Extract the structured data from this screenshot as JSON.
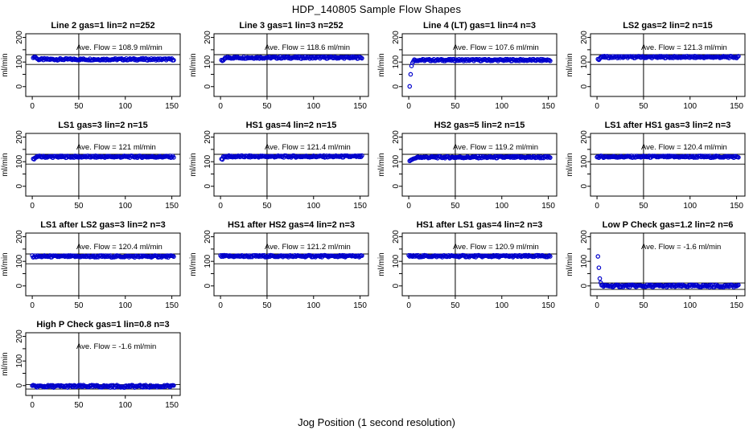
{
  "page": {
    "title": "HDP_140805  Sample Flow Shapes",
    "xlabel": "Jog Position (1 second resolution)"
  },
  "chart_data": {
    "type": "scatter",
    "layout": {
      "rows": 4,
      "cols": 4,
      "n_panels": 13
    },
    "point_color": "#0000CC",
    "axis_color": "#000000",
    "ylabel": "ml/min",
    "x_ticks": [
      0,
      50,
      100,
      150
    ],
    "y_ticks_labeled": [
      0,
      100,
      200
    ],
    "y_ticks_minor": [
      50,
      150
    ],
    "xlim": [
      -7,
      159
    ],
    "ylim": [
      -40,
      215
    ],
    "vline_x": 50,
    "panels": [
      {
        "title": "Line 2 gas=1 lin=2 n=252",
        "gas": "1",
        "lin": "2",
        "n": 252,
        "ave_flow": 108.9,
        "annotation": "Ave. Flow =  108.9  ml/min",
        "flat_level": 111,
        "jitter": 4,
        "x_end": 152,
        "lead_points": [
          [
            1,
            117
          ],
          [
            2,
            120
          ],
          [
            3,
            121
          ],
          [
            4,
            118
          ],
          [
            5,
            114
          ]
        ],
        "ref_hi": 130,
        "ref_lo": 90
      },
      {
        "title": "Line 3 gas=1 lin=3 n=252",
        "gas": "1",
        "lin": "3",
        "n": 252,
        "ave_flow": 118.6,
        "annotation": "Ave. Flow =  118.6  ml/min",
        "flat_level": 118,
        "jitter": 4,
        "x_end": 152,
        "lead_points": [
          [
            1,
            108
          ],
          [
            2,
            105
          ],
          [
            3,
            107
          ],
          [
            4,
            112
          ]
        ],
        "ref_hi": 130,
        "ref_lo": 90
      },
      {
        "title": "Line 4 (LT) gas=1 lin=4 n=3",
        "gas": "1",
        "lin": "4",
        "n": 3,
        "ave_flow": 107.6,
        "annotation": "Ave. Flow =  107.6  ml/min",
        "flat_level": 108,
        "jitter": 4,
        "x_end": 152,
        "lead_points": [
          [
            1,
            1
          ],
          [
            2,
            50
          ],
          [
            3,
            84
          ],
          [
            4,
            96
          ],
          [
            5,
            103
          ]
        ],
        "ref_hi": 128,
        "ref_lo": 90
      },
      {
        "title": "LS2 gas=2 lin=2 n=15",
        "gas": "2",
        "lin": "2",
        "n": 15,
        "ave_flow": 121.3,
        "annotation": "Ave. Flow =  121.3  ml/min",
        "flat_level": 120,
        "jitter": 4,
        "x_end": 152,
        "lead_points": [
          [
            1,
            112
          ],
          [
            2,
            109
          ],
          [
            3,
            114
          ]
        ],
        "ref_hi": 130,
        "ref_lo": 90
      },
      {
        "title": "LS1 gas=3 lin=2 n=15",
        "gas": "3",
        "lin": "2",
        "n": 15,
        "ave_flow": 121,
        "annotation": "Ave. Flow =  121   ml/min",
        "flat_level": 120,
        "jitter": 4,
        "x_end": 152,
        "lead_points": [
          [
            1,
            112
          ],
          [
            2,
            110
          ]
        ],
        "ref_hi": 130,
        "ref_lo": 90
      },
      {
        "title": "HS1 gas=4 lin=2 n=15",
        "gas": "4",
        "lin": "2",
        "n": 15,
        "ave_flow": 121.4,
        "annotation": "Ave. Flow =  121.4  ml/min",
        "flat_level": 121,
        "jitter": 4,
        "x_end": 152,
        "lead_points": [
          [
            1,
            111
          ],
          [
            2,
            109
          ]
        ],
        "ref_hi": 130,
        "ref_lo": 90
      },
      {
        "title": "HS2 gas=5 lin=2 n=15",
        "gas": "5",
        "lin": "2",
        "n": 15,
        "ave_flow": 119.2,
        "annotation": "Ave. Flow =  119.2  ml/min",
        "flat_level": 118,
        "jitter": 4,
        "x_end": 152,
        "lead_points": [
          [
            1,
            103
          ],
          [
            2,
            106
          ],
          [
            3,
            108
          ],
          [
            4,
            110
          ],
          [
            5,
            112
          ],
          [
            6,
            113
          ],
          [
            7,
            114
          ],
          [
            8,
            115
          ]
        ],
        "ref_hi": 130,
        "ref_lo": 90
      },
      {
        "title": "LS1 after HS1 gas=3 lin=2 n=3",
        "gas": "3",
        "lin": "2",
        "n": 3,
        "ave_flow": 120.4,
        "annotation": "Ave. Flow =  120.4  ml/min",
        "flat_level": 120,
        "jitter": 4,
        "x_end": 152,
        "lead_points": [],
        "ref_hi": 130,
        "ref_lo": 90
      },
      {
        "title": "LS1 after LS2 gas=3 lin=2 n=3",
        "gas": "3",
        "lin": "2",
        "n": 3,
        "ave_flow": 120.4,
        "annotation": "Ave. Flow =  120.4  ml/min",
        "flat_level": 120,
        "jitter": 4,
        "x_end": 152,
        "lead_points": [],
        "ref_hi": 130,
        "ref_lo": 90
      },
      {
        "title": "HS1 after HS2 gas=4 lin=2 n=3",
        "gas": "4",
        "lin": "2",
        "n": 3,
        "ave_flow": 121.2,
        "annotation": "Ave. Flow =  121.2  ml/min",
        "flat_level": 121,
        "jitter": 4,
        "x_end": 152,
        "lead_points": [],
        "ref_hi": 130,
        "ref_lo": 90
      },
      {
        "title": "HS1 after LS1 gas=4 lin=2 n=3",
        "gas": "4",
        "lin": "2",
        "n": 3,
        "ave_flow": 120.9,
        "annotation": "Ave. Flow =  120.9  ml/min",
        "flat_level": 121,
        "jitter": 4,
        "x_end": 152,
        "lead_points": [],
        "ref_hi": 130,
        "ref_lo": 90
      },
      {
        "title": "Low P Check gas=1.2 lin=2 n=6",
        "gas": "1.2",
        "lin": "2",
        "n": 6,
        "ave_flow": -1.6,
        "annotation": "Ave. Flow =  -1.6  ml/min",
        "flat_level": 0,
        "jitter": 5,
        "x_end": 152,
        "lead_points": [
          [
            1,
            120
          ],
          [
            2,
            74
          ],
          [
            3,
            30
          ],
          [
            4,
            13
          ]
        ],
        "ref_hi": 12,
        "ref_lo": -14
      },
      {
        "title": "High P Check gas=1 lin=0.8 n=3",
        "gas": "1",
        "lin": "0.8",
        "n": 3,
        "ave_flow": -1.6,
        "annotation": "Ave. Flow =  -1.6  ml/min",
        "flat_level": -3,
        "jitter": 5,
        "x_end": 152,
        "lead_points": [],
        "ref_hi": 4,
        "ref_lo": -14
      }
    ]
  }
}
